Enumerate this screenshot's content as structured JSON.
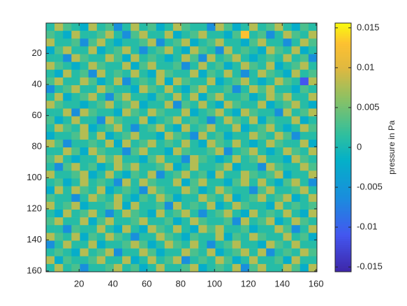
{
  "chart_data": {
    "type": "heatmap",
    "colorbar_label": "pressure in Pa",
    "colormap": "parula",
    "xlim": [
      0.5,
      160.5
    ],
    "ylim": [
      0.5,
      160.5
    ],
    "y_reversed": true,
    "xticks": [
      20,
      40,
      60,
      80,
      100,
      120,
      140,
      160
    ],
    "yticks": [
      20,
      40,
      60,
      80,
      100,
      120,
      140,
      160
    ],
    "clim": [
      -0.0156,
      0.0156
    ],
    "cticks": [
      -0.015,
      -0.01,
      -0.005,
      0,
      0.005,
      0.01,
      0.015
    ],
    "z": [
      [
        0.001,
        0.008,
        0.003,
        0.001,
        -0.002,
        0.008,
        0.001,
        0.003,
        -0.006,
        0.001,
        0.008,
        0.001,
        0.003,
        -0.002,
        0.001,
        0.008,
        0.003,
        0.001,
        0.001,
        -0.006,
        0.008,
        0.003,
        -0.002,
        0.001,
        0.008,
        0.001,
        0.003,
        0.008,
        0.001,
        -0.002,
        0.003,
        0.001
      ],
      [
        0.003,
        0.001,
        -0.002,
        0.008,
        0.001,
        0.001,
        0.003,
        0.008,
        0.001,
        -0.006,
        0.003,
        0.008,
        0.001,
        0.001,
        0.008,
        -0.002,
        0.001,
        0.003,
        0.008,
        0.001,
        0.001,
        -0.002,
        0.003,
        0.013,
        0.001,
        0.003,
        -0.006,
        0.001,
        0.008,
        0.003,
        0.001,
        0.008
      ],
      [
        0.008,
        0.001,
        0.001,
        0.003,
        -0.006,
        0.003,
        0.008,
        0.001,
        -0.002,
        0.001,
        0.001,
        0.003,
        0.008,
        -0.006,
        0.001,
        0.003,
        0.008,
        -0.002,
        0.001,
        0.003,
        0.008,
        0.001,
        0.001,
        -0.002,
        0.003,
        0.008,
        0.001,
        0.001,
        -0.006,
        0.001,
        0.008,
        0.003
      ],
      [
        -0.002,
        0.003,
        0.008,
        0.001,
        0.001,
        0.008,
        -0.002,
        0.001,
        0.003,
        0.008,
        0.001,
        -0.006,
        0.001,
        0.003,
        0.008,
        0.001,
        -0.002,
        0.008,
        0.003,
        0.001,
        -0.006,
        0.008,
        0.001,
        0.003,
        0.001,
        -0.002,
        0.008,
        0.003,
        0.001,
        0.008,
        -0.002,
        0.001
      ],
      [
        0.001,
        0.001,
        -0.006,
        0.008,
        0.003,
        0.001,
        0.001,
        0.008,
        0.003,
        -0.002,
        0.008,
        0.001,
        0.003,
        0.001,
        -0.002,
        0.001,
        0.008,
        0.003,
        -0.006,
        0.008,
        0.001,
        0.003,
        0.008,
        0.001,
        -0.002,
        0.001,
        0.003,
        0.001,
        0.008,
        0.001,
        0.003,
        -0.006
      ],
      [
        0.008,
        0.003,
        0.001,
        -0.002,
        0.001,
        0.008,
        0.003,
        0.001,
        0.001,
        0.008,
        -0.002,
        0.003,
        0.008,
        0.001,
        0.001,
        0.003,
        -0.006,
        0.001,
        0.008,
        0.001,
        0.003,
        -0.002,
        0.001,
        0.008,
        0.003,
        0.001,
        0.008,
        -0.002,
        0.001,
        0.003,
        0.008,
        0.001
      ],
      [
        0.001,
        -0.002,
        0.008,
        0.001,
        0.003,
        -0.006,
        0.008,
        0.001,
        0.003,
        0.001,
        0.008,
        0.001,
        -0.002,
        0.008,
        0.003,
        0.001,
        0.001,
        0.008,
        -0.002,
        0.003,
        0.001,
        0.008,
        0.001,
        -0.006,
        0.001,
        0.008,
        0.003,
        0.001,
        -0.002,
        0.008,
        0.001,
        0.003
      ],
      [
        0.003,
        0.008,
        0.001,
        0.001,
        0.008,
        0.003,
        -0.002,
        0.001,
        0.008,
        -0.006,
        0.001,
        0.003,
        0.001,
        0.008,
        -0.002,
        0.008,
        0.003,
        0.001,
        0.001,
        0.008,
        -0.002,
        0.001,
        0.003,
        0.008,
        0.001,
        -0.002,
        0.001,
        0.008,
        0.003,
        0.001,
        -0.011,
        0.008
      ],
      [
        -0.006,
        0.001,
        0.003,
        0.008,
        0.001,
        0.001,
        0.008,
        0.003,
        0.001,
        0.001,
        -0.002,
        0.008,
        0.003,
        0.001,
        0.008,
        0.001,
        -0.002,
        0.003,
        0.008,
        0.001,
        0.001,
        0.003,
        -0.006,
        0.001,
        0.008,
        0.003,
        0.008,
        0.001,
        0.001,
        -0.002,
        0.003,
        0.001
      ],
      [
        0.001,
        0.008,
        -0.002,
        0.001,
        0.003,
        0.008,
        0.001,
        -0.006,
        0.003,
        0.008,
        0.001,
        0.001,
        -0.002,
        0.003,
        0.001,
        0.008,
        0.001,
        0.008,
        -0.002,
        0.003,
        0.008,
        0.001,
        0.001,
        0.003,
        -0.002,
        0.001,
        0.008,
        0.003,
        0.008,
        0.001,
        0.001,
        0.008
      ],
      [
        0.008,
        0.003,
        0.001,
        0.001,
        -0.002,
        0.001,
        0.003,
        0.008,
        0.001,
        0.003,
        0.008,
        -0.002,
        0.001,
        0.001,
        0.008,
        -0.006,
        0.003,
        0.001,
        0.008,
        0.001,
        -0.002,
        0.008,
        0.003,
        0.001,
        0.001,
        0.008,
        -0.002,
        0.001,
        0.003,
        0.008,
        0.001,
        -0.002
      ],
      [
        0.001,
        0.001,
        0.008,
        -0.006,
        0.008,
        0.003,
        0.001,
        0.001,
        -0.002,
        0.008,
        0.003,
        0.001,
        0.008,
        0.003,
        0.001,
        0.001,
        0.008,
        -0.002,
        0.001,
        0.003,
        0.008,
        0.001,
        -0.002,
        0.008,
        0.003,
        0.001,
        0.001,
        -0.006,
        0.008,
        0.001,
        0.003,
        0.008
      ],
      [
        0.003,
        -0.002,
        0.001,
        0.008,
        0.001,
        0.001,
        -0.006,
        0.008,
        0.003,
        0.001,
        0.001,
        0.008,
        -0.002,
        0.001,
        0.003,
        0.008,
        0.001,
        0.003,
        0.001,
        -0.006,
        0.001,
        0.008,
        0.003,
        0.001,
        0.008,
        -0.002,
        0.003,
        0.001,
        0.001,
        0.008,
        -0.002,
        0.001
      ],
      [
        0.001,
        0.008,
        0.003,
        0.001,
        0.008,
        -0.002,
        0.001,
        0.003,
        0.008,
        0.001,
        -0.006,
        0.001,
        0.003,
        0.008,
        0.001,
        -0.002,
        0.008,
        0.001,
        0.003,
        0.008,
        0.001,
        0.001,
        0.008,
        -0.002,
        0.001,
        0.003,
        0.008,
        0.001,
        -0.002,
        0.001,
        0.008,
        0.003
      ],
      [
        -0.002,
        0.001,
        0.001,
        0.003,
        0.008,
        0.001,
        0.008,
        -0.002,
        0.001,
        0.003,
        0.008,
        0.001,
        0.001,
        -0.002,
        0.008,
        0.003,
        0.001,
        -0.006,
        0.008,
        0.001,
        0.003,
        -0.002,
        0.001,
        0.001,
        0.008,
        0.003,
        0.001,
        0.008,
        0.003,
        -0.006,
        0.001,
        0.001
      ],
      [
        0.008,
        0.003,
        -0.006,
        0.001,
        0.001,
        0.003,
        0.001,
        0.008,
        -0.002,
        0.008,
        0.001,
        0.003,
        0.008,
        0.001,
        0.003,
        0.001,
        0.008,
        0.001,
        -0.002,
        0.008,
        0.003,
        0.001,
        0.008,
        0.001,
        -0.002,
        0.001,
        0.008,
        0.003,
        0.001,
        0.001,
        0.008,
        -0.002
      ],
      [
        0.001,
        0.001,
        0.008,
        0.003,
        -0.002,
        0.008,
        0.003,
        0.001,
        0.001,
        -0.006,
        0.003,
        0.008,
        0.001,
        0.001,
        -0.002,
        0.008,
        0.003,
        0.001,
        0.001,
        0.003,
        0.008,
        -0.006,
        0.001,
        0.003,
        0.008,
        0.001,
        -0.002,
        0.001,
        0.008,
        0.003,
        0.001,
        0.008
      ],
      [
        0.003,
        0.008,
        0.001,
        -0.002,
        0.001,
        0.001,
        0.008,
        0.003,
        0.008,
        0.001,
        0.001,
        -0.002,
        0.003,
        0.008,
        0.001,
        0.001,
        -0.006,
        0.008,
        0.003,
        0.001,
        -0.002,
        0.001,
        0.008,
        0.001,
        0.003,
        0.008,
        0.001,
        0.001,
        -0.002,
        0.008,
        0.003,
        0.001
      ],
      [
        0.001,
        -0.006,
        0.003,
        0.008,
        0.001,
        0.003,
        -0.002,
        0.001,
        0.008,
        0.003,
        0.008,
        0.001,
        0.001,
        0.003,
        0.008,
        -0.002,
        0.001,
        0.008,
        0.001,
        0.001,
        0.003,
        0.008,
        -0.002,
        0.001,
        0.001,
        -0.006,
        0.008,
        0.003,
        0.001,
        0.001,
        0.008,
        0.003
      ],
      [
        0.008,
        0.001,
        0.001,
        0.003,
        0.008,
        -0.002,
        0.001,
        0.008,
        0.001,
        -0.002,
        0.003,
        0.001,
        0.008,
        -0.006,
        0.001,
        0.003,
        0.008,
        0.001,
        0.003,
        -0.002,
        0.008,
        0.001,
        0.001,
        0.008,
        0.003,
        0.001,
        0.003,
        0.008,
        -0.002,
        0.001,
        0.001,
        0.008
      ],
      [
        0.001,
        0.003,
        -0.002,
        0.001,
        0.008,
        0.001,
        0.003,
        0.001,
        -0.006,
        0.008,
        0.001,
        0.008,
        0.003,
        0.001,
        0.001,
        0.008,
        -0.002,
        0.003,
        0.008,
        0.001,
        0.001,
        -0.002,
        0.003,
        0.008,
        0.001,
        0.008,
        0.001,
        -0.002,
        0.003,
        0.008,
        0.001,
        -0.006
      ],
      [
        -0.002,
        0.008,
        0.001,
        0.008,
        0.003,
        0.001,
        0.008,
        -0.002,
        0.001,
        0.003,
        0.001,
        -0.006,
        0.008,
        0.003,
        0.001,
        0.001,
        0.008,
        0.003,
        -0.002,
        0.001,
        0.008,
        0.003,
        0.001,
        0.001,
        -0.006,
        0.003,
        0.008,
        0.001,
        0.001,
        0.003,
        0.008,
        0.001
      ],
      [
        0.003,
        0.001,
        0.001,
        -0.006,
        0.001,
        0.008,
        0.003,
        0.001,
        0.008,
        0.001,
        -0.002,
        0.003,
        0.001,
        0.008,
        0.003,
        -0.002,
        0.001,
        0.001,
        0.008,
        0.003,
        0.001,
        0.008,
        -0.002,
        0.001,
        0.003,
        0.008,
        0.001,
        0.003,
        0.008,
        -0.002,
        0.001,
        0.008
      ],
      [
        0.008,
        0.001,
        0.003,
        0.008,
        -0.002,
        0.001,
        0.001,
        0.003,
        0.008,
        -0.002,
        0.008,
        0.001,
        0.001,
        0.003,
        -0.006,
        0.008,
        0.001,
        0.003,
        0.001,
        0.008,
        -0.002,
        0.001,
        0.008,
        0.003,
        0.001,
        0.001,
        -0.002,
        0.008,
        0.001,
        0.003,
        0.001,
        0.003
      ],
      [
        0.001,
        -0.002,
        0.008,
        0.001,
        0.003,
        0.008,
        0.001,
        -0.006,
        0.001,
        0.008,
        0.003,
        0.001,
        -0.002,
        0.008,
        0.001,
        0.003,
        0.008,
        0.001,
        -0.006,
        0.001,
        0.003,
        0.008,
        0.001,
        -0.002,
        0.008,
        0.001,
        0.003,
        0.001,
        0.008,
        0.001,
        -0.002,
        0.008
      ],
      [
        0.003,
        0.008,
        0.001,
        0.001,
        0.008,
        -0.002,
        0.003,
        0.008,
        0.001,
        0.001,
        0.003,
        0.008,
        0.001,
        0.001,
        0.003,
        -0.002,
        0.001,
        0.008,
        0.003,
        0.001,
        0.001,
        0.003,
        -0.006,
        0.008,
        0.001,
        0.003,
        0.008,
        -0.002,
        0.001,
        0.008,
        0.003,
        0.001
      ],
      [
        0.001,
        0.001,
        -0.006,
        0.003,
        0.001,
        0.001,
        0.008,
        0.001,
        -0.002,
        0.008,
        0.001,
        -0.002,
        0.008,
        0.003,
        0.001,
        0.008,
        0.001,
        -0.002,
        0.008,
        0.003,
        0.008,
        0.001,
        0.001,
        0.003,
        -0.002,
        0.001,
        0.001,
        0.008,
        0.003,
        -0.006,
        0.001,
        0.008
      ],
      [
        0.008,
        0.003,
        0.001,
        0.008,
        -0.002,
        0.003,
        0.001,
        0.008,
        0.003,
        0.001,
        -0.006,
        0.001,
        0.001,
        0.008,
        0.003,
        0.001,
        -0.002,
        0.003,
        0.001,
        0.001,
        0.008,
        -0.002,
        0.003,
        0.001,
        0.008,
        0.003,
        0.001,
        0.001,
        0.008,
        0.001,
        0.003,
        -0.002
      ],
      [
        -0.006,
        0.001,
        0.008,
        0.001,
        0.001,
        0.008,
        -0.002,
        0.001,
        0.001,
        0.003,
        0.008,
        0.003,
        -0.002,
        0.001,
        0.008,
        0.003,
        0.001,
        0.008,
        0.001,
        -0.006,
        0.001,
        0.003,
        0.008,
        0.001,
        0.001,
        -0.002,
        0.008,
        0.003,
        0.001,
        0.008,
        0.001,
        0.001
      ],
      [
        0.001,
        0.003,
        0.001,
        -0.002,
        0.008,
        0.001,
        0.003,
        0.008,
        -0.006,
        0.001,
        0.001,
        0.008,
        0.003,
        -0.002,
        0.001,
        0.001,
        0.008,
        0.003,
        0.001,
        0.008,
        -0.002,
        0.001,
        0.003,
        0.008,
        0.001,
        0.008,
        -0.006,
        0.001,
        0.003,
        0.001,
        0.008,
        0.003
      ],
      [
        0.008,
        -0.002,
        0.003,
        0.001,
        0.001,
        0.003,
        0.008,
        0.001,
        0.001,
        0.008,
        -0.002,
        0.001,
        0.008,
        0.001,
        0.003,
        0.008,
        -0.006,
        0.001,
        0.003,
        0.001,
        0.008,
        0.003,
        -0.002,
        0.001,
        0.008,
        0.001,
        0.001,
        0.003,
        -0.002,
        0.008,
        0.001,
        0.001
      ],
      [
        0.001,
        0.008,
        0.001,
        0.003,
        -0.006,
        0.001,
        0.001,
        0.003,
        0.008,
        0.001,
        0.003,
        -0.002,
        0.001,
        0.008,
        0.001,
        0.001,
        0.003,
        0.008,
        -0.002,
        0.001,
        0.003,
        0.001,
        0.008,
        -0.006,
        0.003,
        0.008,
        0.001,
        0.001,
        0.008,
        0.003,
        -0.002,
        0.008
      ]
    ]
  }
}
